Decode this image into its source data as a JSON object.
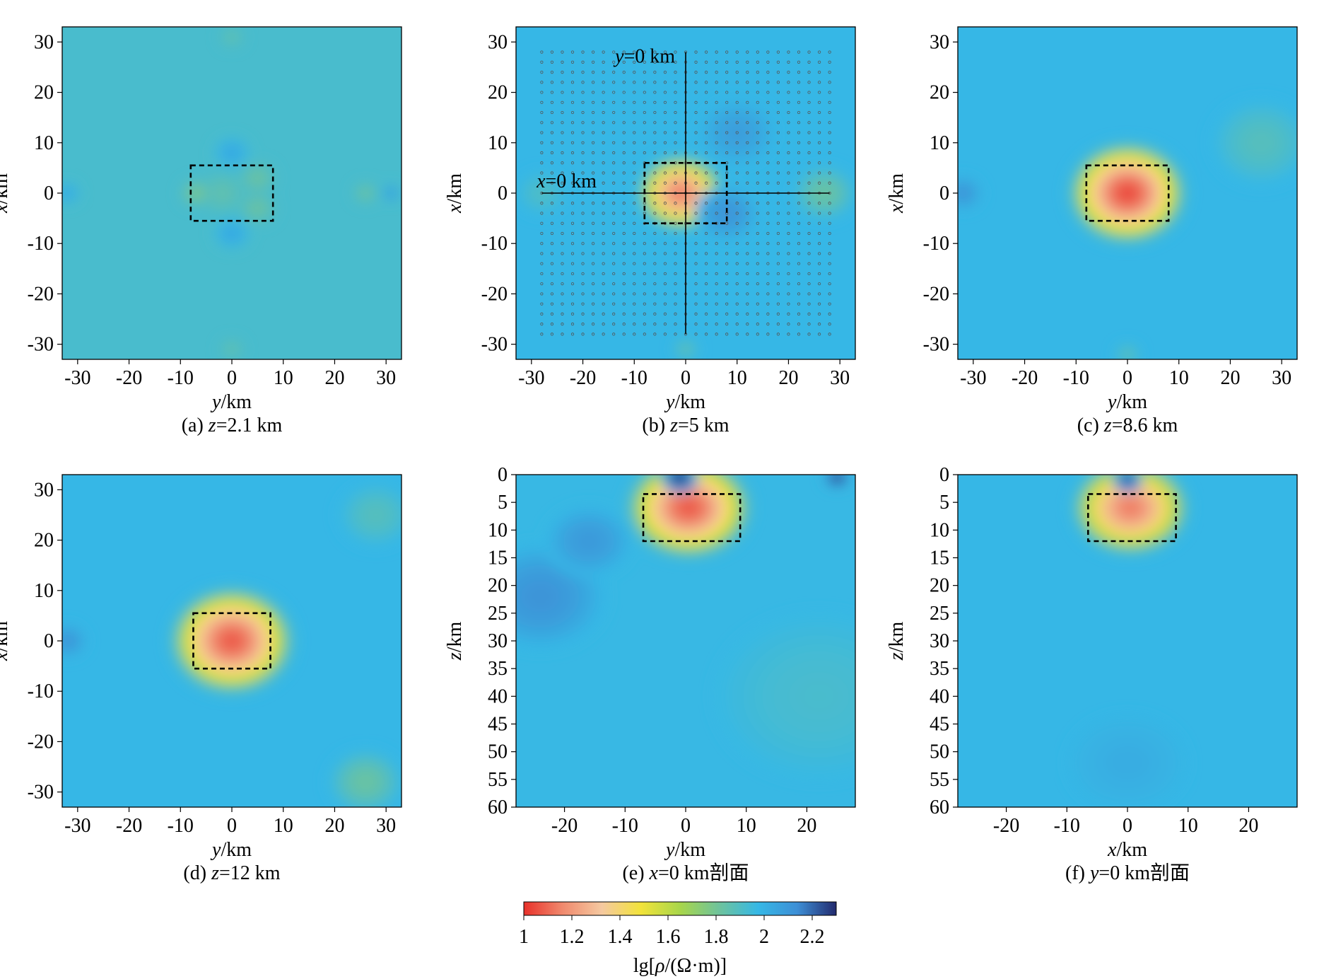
{
  "figure": {
    "colormap_stops": [
      "#e8312a",
      "#f08a6e",
      "#f5c9a0",
      "#f2e33a",
      "#a8d64a",
      "#6ec39c",
      "#36b8e6",
      "#3d8fd6",
      "#232a6e"
    ],
    "boundary_color": "#000000"
  },
  "colorbar": {
    "ticks": [
      "1",
      "1.2",
      "1.4",
      "1.6",
      "1.8",
      "2",
      "2.2"
    ],
    "tick_values": [
      1,
      1.2,
      1.4,
      1.6,
      1.8,
      2,
      2.2
    ],
    "range": [
      1,
      2.3
    ],
    "label_lg": "lg[",
    "label_rho": "ρ",
    "label_unit": "/(Ω·m)]"
  },
  "chart_data": [
    {
      "id": "a",
      "type": "heatmap",
      "caption_prefix": "(a) ",
      "caption_var": "z",
      "caption_rest": "=2.1 km",
      "xlabel_var": "y",
      "xlabel_unit": "/km",
      "ylabel_var": "x",
      "ylabel_unit": "/km",
      "xlim": [
        -33,
        33
      ],
      "ylim": [
        -33,
        33
      ],
      "y_reversed": false,
      "xticks": [
        -30,
        -20,
        -10,
        0,
        10,
        20,
        30
      ],
      "yticks": [
        -30,
        -20,
        -10,
        0,
        10,
        20,
        30
      ],
      "background_value": 1.92,
      "anomaly": {
        "y": [
          -8,
          8
        ],
        "x": [
          -5.5,
          5.5
        ]
      },
      "features": [
        {
          "y": -2,
          "x": 0,
          "value": 1.85,
          "spread": 4
        },
        {
          "y": 5,
          "x": 3,
          "value": 1.82,
          "spread": 3
        },
        {
          "y": 5,
          "x": -3,
          "value": 1.82,
          "spread": 3
        },
        {
          "y": -7,
          "x": 0,
          "value": 1.78,
          "spread": 2.5
        },
        {
          "y": 0,
          "x": 8,
          "value": 2.05,
          "spread": 3
        },
        {
          "y": 0,
          "x": -8,
          "value": 2.05,
          "spread": 3
        },
        {
          "y": 26,
          "x": 0,
          "value": 1.82,
          "spread": 2
        },
        {
          "y": 31,
          "x": 0,
          "value": 2.12,
          "spread": 1.5
        },
        {
          "y": -32,
          "x": 0,
          "value": 2.05,
          "spread": 2
        },
        {
          "y": 0,
          "x": 31,
          "value": 1.85,
          "spread": 2
        },
        {
          "y": 0,
          "x": -31,
          "value": 1.85,
          "spread": 2
        }
      ]
    },
    {
      "id": "b",
      "type": "heatmap",
      "caption_prefix": "(b) ",
      "caption_var": "z",
      "caption_rest": "=5 km",
      "xlabel_var": "y",
      "xlabel_unit": "/km",
      "ylabel_var": "x",
      "ylabel_unit": "/km",
      "xlim": [
        -33,
        33
      ],
      "ylim": [
        -33,
        33
      ],
      "y_reversed": false,
      "xticks": [
        -30,
        -20,
        -10,
        0,
        10,
        20,
        30
      ],
      "yticks": [
        -30,
        -20,
        -10,
        0,
        10,
        20,
        30
      ],
      "background_value": 1.98,
      "anomaly": {
        "y": [
          -8,
          8
        ],
        "x": [
          -6,
          6
        ]
      },
      "features": [
        {
          "y": -1,
          "x": 0,
          "value": 1.12,
          "spread": 7
        },
        {
          "y": 8,
          "x": -4,
          "value": 2.12,
          "spread": 5
        },
        {
          "y": 10,
          "x": 12,
          "value": 2.08,
          "spread": 6
        },
        {
          "y": 27,
          "x": 0,
          "value": 1.82,
          "spread": 5
        },
        {
          "y": -28,
          "x": 0,
          "value": 1.9,
          "spread": 4
        },
        {
          "y": 0,
          "x": -31,
          "value": 1.85,
          "spread": 2
        }
      ],
      "station_grid": {
        "y_range": [
          -28,
          28
        ],
        "x_range": [
          -28,
          28
        ],
        "step": 2
      },
      "profile_lines": {
        "x0_label_var": "x",
        "x0_label_rest": "=0 km",
        "y0_label_var": "y",
        "y0_label_rest": "=0 km",
        "x_line_y_span": [
          -28,
          28
        ],
        "y_line_x_span": [
          -28,
          28
        ]
      }
    },
    {
      "id": "c",
      "type": "heatmap",
      "caption_prefix": "(c) ",
      "caption_var": "z",
      "caption_rest": "=8.6 km",
      "xlabel_var": "y",
      "xlabel_unit": "/km",
      "ylabel_var": "x",
      "ylabel_unit": "/km",
      "xlim": [
        -33,
        33
      ],
      "ylim": [
        -33,
        33
      ],
      "y_reversed": false,
      "xticks": [
        -30,
        -20,
        -10,
        0,
        10,
        20,
        30
      ],
      "yticks": [
        -30,
        -20,
        -10,
        0,
        10,
        20,
        30
      ],
      "background_value": 1.98,
      "anomaly": {
        "y": [
          -8,
          8
        ],
        "x": [
          -5.5,
          5.5
        ]
      },
      "features": [
        {
          "y": 0,
          "x": 0,
          "value": 1.02,
          "spread": 9.5
        },
        {
          "y": -32,
          "x": 0,
          "value": 2.12,
          "spread": 3
        },
        {
          "y": 26,
          "x": 10,
          "value": 1.88,
          "spread": 8
        },
        {
          "y": 0,
          "x": -32,
          "value": 1.86,
          "spread": 2
        }
      ]
    },
    {
      "id": "d",
      "type": "heatmap",
      "caption_prefix": "(d) ",
      "caption_var": "z",
      "caption_rest": "=12 km",
      "xlabel_var": "y",
      "xlabel_unit": "/km",
      "ylabel_var": "x",
      "ylabel_unit": "/km",
      "xlim": [
        -33,
        33
      ],
      "ylim": [
        -33,
        33
      ],
      "y_reversed": false,
      "xticks": [
        -30,
        -20,
        -10,
        0,
        10,
        20,
        30
      ],
      "yticks": [
        -30,
        -20,
        -10,
        0,
        10,
        20,
        30
      ],
      "background_value": 1.98,
      "anomaly": {
        "y": [
          -7.5,
          7.5
        ],
        "x": [
          -5.5,
          5.5
        ]
      },
      "features": [
        {
          "y": 0,
          "x": 0,
          "value": 1.05,
          "spread": 10
        },
        {
          "y": -32,
          "x": 0,
          "value": 2.12,
          "spread": 3
        },
        {
          "y": 26,
          "x": -28,
          "value": 1.82,
          "spread": 6
        },
        {
          "y": 28,
          "x": 25,
          "value": 1.88,
          "spread": 6
        }
      ]
    },
    {
      "id": "e",
      "type": "heatmap",
      "caption_prefix": "(e) ",
      "caption_var": "x",
      "caption_rest": "=0 km剖面",
      "xlabel_var": "y",
      "xlabel_unit": "/km",
      "ylabel_var": "z",
      "ylabel_unit": "/km",
      "xlim": [
        -28,
        28
      ],
      "ylim": [
        0,
        60
      ],
      "y_reversed": true,
      "xticks": [
        -20,
        -10,
        0,
        10,
        20
      ],
      "yticks": [
        0,
        5,
        10,
        15,
        20,
        25,
        30,
        35,
        40,
        45,
        50,
        55,
        60
      ],
      "background_value": 1.97,
      "anomaly": {
        "y": [
          -7,
          9
        ],
        "x": [
          3.5,
          12
        ]
      },
      "features": [
        {
          "y": 0.5,
          "x": 6,
          "value": 1.05,
          "spread": 8.5
        },
        {
          "y": -1,
          "x": 0.6,
          "value": 2.3,
          "spread": 2.5
        },
        {
          "y": 25,
          "x": 0.5,
          "value": 2.3,
          "spread": 1.8
        },
        {
          "y": -24,
          "x": 22,
          "value": 2.12,
          "spread": 9
        },
        {
          "y": -16,
          "x": 12,
          "value": 2.1,
          "spread": 6
        },
        {
          "y": 22,
          "x": 40,
          "value": 1.92,
          "spread": 14
        }
      ]
    },
    {
      "id": "f",
      "type": "heatmap",
      "caption_prefix": "(f) ",
      "caption_var": "y",
      "caption_rest": "=0 km剖面",
      "xlabel_var": "x",
      "xlabel_unit": "/km",
      "ylabel_var": "z",
      "ylabel_unit": "/km",
      "xlim": [
        -28,
        28
      ],
      "ylim": [
        0,
        60
      ],
      "y_reversed": true,
      "xticks": [
        -20,
        -10,
        0,
        10,
        20
      ],
      "yticks": [
        0,
        5,
        10,
        15,
        20,
        25,
        30,
        35,
        40,
        45,
        50,
        55,
        60
      ],
      "background_value": 1.98,
      "anomaly": {
        "y": [
          -6.5,
          8
        ],
        "x": [
          3.5,
          12
        ]
      },
      "features": [
        {
          "y": 0.5,
          "x": 6,
          "value": 1.12,
          "spread": 8
        },
        {
          "y": 0,
          "x": 1,
          "value": 2.25,
          "spread": 2
        },
        {
          "y": 0,
          "x": 52,
          "value": 2.02,
          "spread": 8
        }
      ]
    }
  ]
}
